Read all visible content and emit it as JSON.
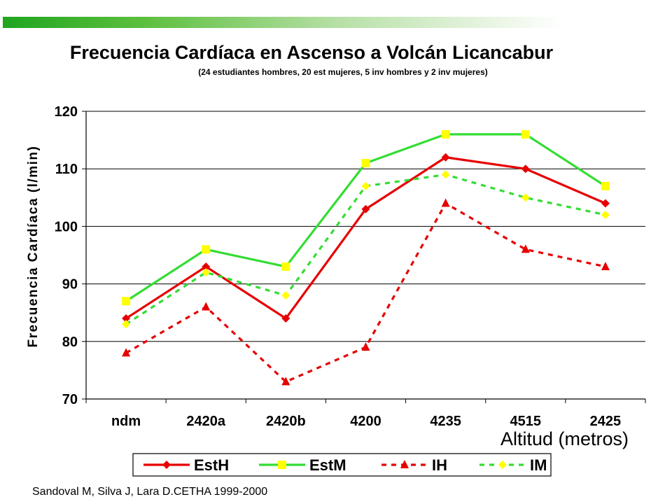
{
  "chart_data": {
    "type": "line",
    "title": "Frecuencia Cardíaca en Ascenso a Volcán Licancabur",
    "subtitle": "(24 estudiantes hombres, 20 est mujeres, 5 inv hombres y 2 inv mujeres)",
    "xlabel": "Altitud (metros)",
    "ylabel": "Frecuencia Cardíaca  (l/min)",
    "categories": [
      "ndm",
      "2420a",
      "2420b",
      "4200",
      "4235",
      "4515",
      "2425"
    ],
    "ylim": [
      70,
      120
    ],
    "yticks": [
      70,
      80,
      90,
      100,
      110,
      120
    ],
    "grid": true,
    "legend_position": "bottom",
    "series": [
      {
        "name": "EstH",
        "values": [
          84,
          93,
          84,
          103,
          112,
          110,
          104
        ],
        "color": "#e60000",
        "marker": "diamond",
        "marker_color": "#e60000",
        "dash": "solid"
      },
      {
        "name": "EstM",
        "values": [
          87,
          96,
          93,
          111,
          116,
          116,
          107
        ],
        "color": "#33dd33",
        "marker": "square",
        "marker_color": "#ffff00",
        "dash": "solid"
      },
      {
        "name": "IH",
        "values": [
          78,
          86,
          73,
          79,
          104,
          96,
          93
        ],
        "color": "#e60000",
        "marker": "triangle",
        "marker_color": "#e60000",
        "dash": "dashed"
      },
      {
        "name": "IM",
        "values": [
          83,
          92,
          88,
          107,
          109,
          105,
          102
        ],
        "color": "#33dd33",
        "marker": "diamond",
        "marker_color": "#ffff00",
        "dash": "dashed"
      }
    ]
  },
  "source": "Sandoval M, Silva J, Lara D.CETHA 1999-2000"
}
